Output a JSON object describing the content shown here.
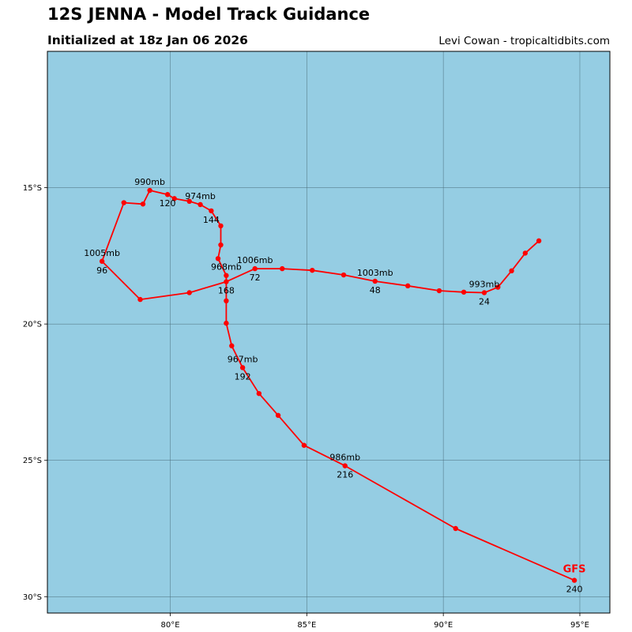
{
  "header": {
    "title": "12S JENNA - Model Track Guidance",
    "subtitle": "Initialized at 18z Jan 06 2026",
    "credit": "Levi Cowan - tropicaltidbits.com"
  },
  "colors": {
    "ocean": "#95cde3",
    "track": "#ff0000",
    "grid": "#4a6b78"
  },
  "map": {
    "lon_range": [
      75.5,
      96.1
    ],
    "lat_range": [
      -30.6,
      -10.0
    ],
    "x_ticks": [
      {
        "value": 80,
        "label": "80°E"
      },
      {
        "value": 85,
        "label": "85°E"
      },
      {
        "value": 90,
        "label": "90°E"
      },
      {
        "value": 95,
        "label": "95°E"
      }
    ],
    "y_ticks": [
      {
        "value": -15,
        "label": "15°S"
      },
      {
        "value": -20,
        "label": "20°S"
      },
      {
        "value": -25,
        "label": "25°S"
      },
      {
        "value": -30,
        "label": "30°S"
      }
    ]
  },
  "track": {
    "model": "GFS",
    "points": [
      {
        "lon": 93.5,
        "lat": -16.95
      },
      {
        "lon": 93.0,
        "lat": -17.4
      },
      {
        "lon": 92.5,
        "lat": -18.05
      },
      {
        "lon": 92.0,
        "lat": -18.65
      },
      {
        "lon": 91.5,
        "lat": -18.85
      },
      {
        "lon": 90.75,
        "lat": -18.83
      },
      {
        "lon": 89.85,
        "lat": -18.78
      },
      {
        "lon": 88.7,
        "lat": -18.6
      },
      {
        "lon": 87.5,
        "lat": -18.43
      },
      {
        "lon": 86.35,
        "lat": -18.2
      },
      {
        "lon": 85.2,
        "lat": -18.03
      },
      {
        "lon": 84.1,
        "lat": -17.97
      },
      {
        "lon": 83.1,
        "lat": -17.97
      },
      {
        "lon": 82.05,
        "lat": -18.45
      },
      {
        "lon": 80.7,
        "lat": -18.85
      },
      {
        "lon": 78.9,
        "lat": -19.1
      },
      {
        "lon": 77.5,
        "lat": -17.7
      },
      {
        "lon": 78.3,
        "lat": -15.55
      },
      {
        "lon": 79.0,
        "lat": -15.6
      },
      {
        "lon": 79.25,
        "lat": -15.1
      },
      {
        "lon": 79.9,
        "lat": -15.25
      },
      {
        "lon": 80.15,
        "lat": -15.4
      },
      {
        "lon": 80.7,
        "lat": -15.5
      },
      {
        "lon": 81.1,
        "lat": -15.62
      },
      {
        "lon": 81.5,
        "lat": -15.85
      },
      {
        "lon": 81.85,
        "lat": -16.4
      },
      {
        "lon": 81.85,
        "lat": -17.1
      },
      {
        "lon": 81.75,
        "lat": -17.6
      },
      {
        "lon": 82.05,
        "lat": -18.22
      },
      {
        "lon": 82.05,
        "lat": -19.15
      },
      {
        "lon": 82.05,
        "lat": -19.97
      },
      {
        "lon": 82.25,
        "lat": -20.8
      },
      {
        "lon": 82.65,
        "lat": -21.6
      },
      {
        "lon": 83.25,
        "lat": -22.55
      },
      {
        "lon": 83.95,
        "lat": -23.35
      },
      {
        "lon": 84.9,
        "lat": -24.45
      },
      {
        "lon": 86.4,
        "lat": -25.2
      },
      {
        "lon": 90.45,
        "lat": -27.5
      },
      {
        "lon": 94.8,
        "lat": -29.4
      }
    ],
    "pressure_labels": [
      {
        "lon": 91.5,
        "lat": -18.85,
        "text": "993mb"
      },
      {
        "lon": 87.5,
        "lat": -18.43,
        "text": "1003mb"
      },
      {
        "lon": 83.1,
        "lat": -17.97,
        "text": "1006mb"
      },
      {
        "lon": 77.5,
        "lat": -17.7,
        "text": "1005mb"
      },
      {
        "lon": 79.25,
        "lat": -15.1,
        "text": "990mb"
      },
      {
        "lon": 81.1,
        "lat": -15.62,
        "text": "974mb"
      },
      {
        "lon": 82.05,
        "lat": -18.22,
        "text": "968mb"
      },
      {
        "lon": 82.65,
        "lat": -21.6,
        "text": "967mb"
      },
      {
        "lon": 86.4,
        "lat": -25.2,
        "text": "986mb"
      }
    ],
    "hour_labels": [
      {
        "lon": 91.5,
        "lat": -18.85,
        "text": "24"
      },
      {
        "lon": 87.5,
        "lat": -18.43,
        "text": "48"
      },
      {
        "lon": 83.1,
        "lat": -17.97,
        "text": "72"
      },
      {
        "lon": 77.5,
        "lat": -17.7,
        "text": "96"
      },
      {
        "lon": 79.9,
        "lat": -15.25,
        "text": "120"
      },
      {
        "lon": 81.5,
        "lat": -15.85,
        "text": "144"
      },
      {
        "lon": 82.05,
        "lat": -18.45,
        "text": "168"
      },
      {
        "lon": 82.65,
        "lat": -21.6,
        "text": "192"
      },
      {
        "lon": 86.4,
        "lat": -25.2,
        "text": "216"
      },
      {
        "lon": 94.8,
        "lat": -29.4,
        "text": "240"
      }
    ]
  }
}
